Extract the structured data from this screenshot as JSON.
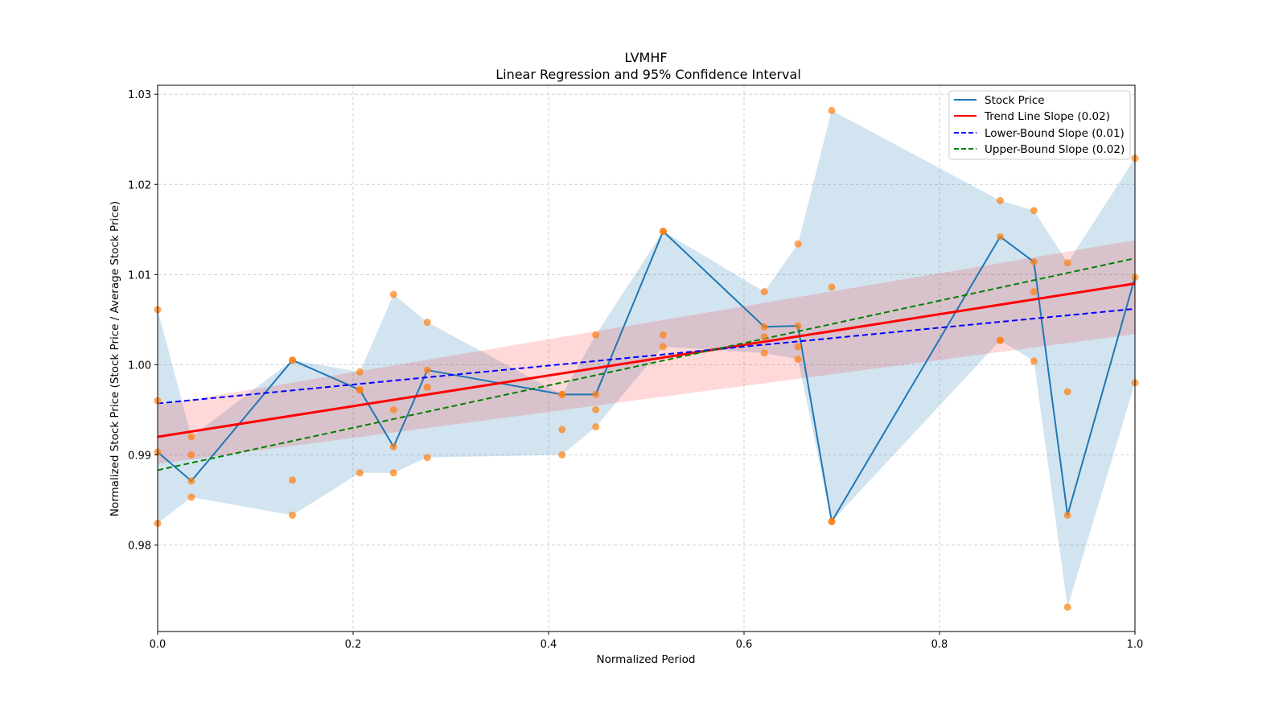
{
  "chart_data": {
    "type": "line",
    "title": "LVMHF",
    "subtitle": "Linear Regression and 95% Confidence Interval",
    "xlabel": "Normalized Period",
    "ylabel": "Normalized Stock Price (Stock Price / Average Stock Price)",
    "xlim": [
      0.0,
      1.0
    ],
    "ylim": [
      0.9704,
      1.031
    ],
    "x_ticks": [
      0.0,
      0.2,
      0.4,
      0.6,
      0.8,
      1.0
    ],
    "x_tick_labels": [
      "0.0",
      "0.2",
      "0.4",
      "0.6",
      "0.8",
      "1.0"
    ],
    "y_ticks": [
      0.98,
      0.99,
      1.0,
      1.01,
      1.02,
      1.03
    ],
    "y_tick_labels": [
      "0.98",
      "0.99",
      "1.00",
      "1.01",
      "1.02",
      "1.03"
    ],
    "grid": true,
    "legend_position": "top-right",
    "colors": {
      "stock_price": "#1f77b4",
      "scatter": "#ff7f0e",
      "trend": "#ff0000",
      "lower": "#0000ff",
      "upper": "#008000",
      "range_band": "#1f77b4",
      "ci_band": "#ff0000"
    },
    "legend": [
      {
        "label": "Stock Price",
        "key": "stock_price",
        "style": "solid"
      },
      {
        "label": "Trend Line Slope (0.02)",
        "key": "trend",
        "style": "solid"
      },
      {
        "label": "Lower-Bound Slope (0.01)",
        "key": "lower",
        "style": "dashed"
      },
      {
        "label": "Upper-Bound Slope (0.02)",
        "key": "upper",
        "style": "dashed"
      }
    ],
    "stock_price": {
      "name": "Stock Price",
      "x": [
        0.0,
        0.0345,
        0.1379,
        0.2069,
        0.2414,
        0.2759,
        0.4138,
        0.4483,
        0.5172,
        0.6207,
        0.6552,
        0.6897,
        0.8621,
        0.8966,
        0.931,
        1.0
      ],
      "y": [
        0.9903,
        0.9871,
        1.0005,
        0.9972,
        0.9909,
        0.9994,
        0.9967,
        0.9967,
        1.0148,
        1.0042,
        1.0043,
        0.9826,
        1.0142,
        1.0114,
        0.9833,
        1.0097
      ]
    },
    "range_band": {
      "x": [
        0.0,
        0.0345,
        0.1379,
        0.2069,
        0.2414,
        0.2759,
        0.4138,
        0.4483,
        0.5172,
        0.6207,
        0.6552,
        0.6897,
        0.8621,
        0.8966,
        0.931,
        1.0
      ],
      "upper": [
        1.0061,
        0.992,
        1.0005,
        0.9992,
        1.0078,
        1.0047,
        0.9967,
        1.0033,
        1.0148,
        1.0081,
        1.0134,
        1.0282,
        1.0182,
        1.0171,
        1.0113,
        1.0229
      ],
      "lower": [
        0.9824,
        0.9853,
        0.9833,
        0.988,
        0.988,
        0.9897,
        0.99,
        0.9931,
        1.002,
        1.0013,
        1.0006,
        0.9826,
        1.0027,
        1.0004,
        0.9731,
        0.998
      ]
    },
    "scatter": {
      "name": "Observations",
      "points": [
        [
          0.0,
          1.0061
        ],
        [
          0.0,
          0.996
        ],
        [
          0.0,
          0.9903
        ],
        [
          0.0,
          0.9824
        ],
        [
          0.0345,
          0.992
        ],
        [
          0.0345,
          0.99
        ],
        [
          0.0345,
          0.9871
        ],
        [
          0.0345,
          0.9853
        ],
        [
          0.1379,
          1.0005
        ],
        [
          0.1379,
          1.0005
        ],
        [
          0.1379,
          0.9872
        ],
        [
          0.1379,
          0.9833
        ],
        [
          0.2069,
          0.9992
        ],
        [
          0.2069,
          0.9972
        ],
        [
          0.2069,
          0.9972
        ],
        [
          0.2069,
          0.988
        ],
        [
          0.2414,
          1.0078
        ],
        [
          0.2414,
          0.995
        ],
        [
          0.2414,
          0.9909
        ],
        [
          0.2414,
          0.988
        ],
        [
          0.2759,
          1.0047
        ],
        [
          0.2759,
          0.9994
        ],
        [
          0.2759,
          0.9975
        ],
        [
          0.2759,
          0.9897
        ],
        [
          0.4138,
          0.9967
        ],
        [
          0.4138,
          0.9967
        ],
        [
          0.4138,
          0.9928
        ],
        [
          0.4138,
          0.99
        ],
        [
          0.4483,
          1.0033
        ],
        [
          0.4483,
          0.9967
        ],
        [
          0.4483,
          0.995
        ],
        [
          0.4483,
          0.9931
        ],
        [
          0.5172,
          1.0148
        ],
        [
          0.5172,
          1.0148
        ],
        [
          0.5172,
          1.0033
        ],
        [
          0.5172,
          1.002
        ],
        [
          0.6207,
          1.0081
        ],
        [
          0.6207,
          1.0042
        ],
        [
          0.6207,
          1.0031
        ],
        [
          0.6207,
          1.0013
        ],
        [
          0.6552,
          1.0134
        ],
        [
          0.6552,
          1.0043
        ],
        [
          0.6552,
          1.002
        ],
        [
          0.6552,
          1.0006
        ],
        [
          0.6897,
          1.0282
        ],
        [
          0.6897,
          1.0086
        ],
        [
          0.6897,
          0.9826
        ],
        [
          0.6897,
          0.9826
        ],
        [
          0.8621,
          1.0182
        ],
        [
          0.8621,
          1.0142
        ],
        [
          0.8621,
          1.0027
        ],
        [
          0.8621,
          1.0027
        ],
        [
          0.8966,
          1.0171
        ],
        [
          0.8966,
          1.0114
        ],
        [
          0.8966,
          1.0081
        ],
        [
          0.8966,
          1.0004
        ],
        [
          0.931,
          1.0113
        ],
        [
          0.931,
          0.997
        ],
        [
          0.931,
          0.9833
        ],
        [
          0.931,
          0.9731
        ],
        [
          1.0,
          1.0229
        ],
        [
          1.0,
          1.0097
        ],
        [
          1.0,
          0.998
        ]
      ]
    },
    "trend_line": {
      "name": "Trend Line",
      "slope": 0.017,
      "x": [
        0.0,
        1.0
      ],
      "y": [
        0.992,
        1.009
      ]
    },
    "lower_bound_line": {
      "name": "Lower-Bound",
      "slope": 0.0105,
      "x": [
        0.0,
        1.0
      ],
      "y": [
        0.9957,
        1.0062
      ]
    },
    "upper_bound_line": {
      "name": "Upper-Bound",
      "slope": 0.0235,
      "x": [
        0.0,
        1.0
      ],
      "y": [
        0.9883,
        1.0118
      ]
    },
    "confidence_band": {
      "x": [
        0.0,
        1.0
      ],
      "upper": [
        0.9955,
        1.0138
      ],
      "lower": [
        0.989,
        1.0034
      ]
    }
  }
}
